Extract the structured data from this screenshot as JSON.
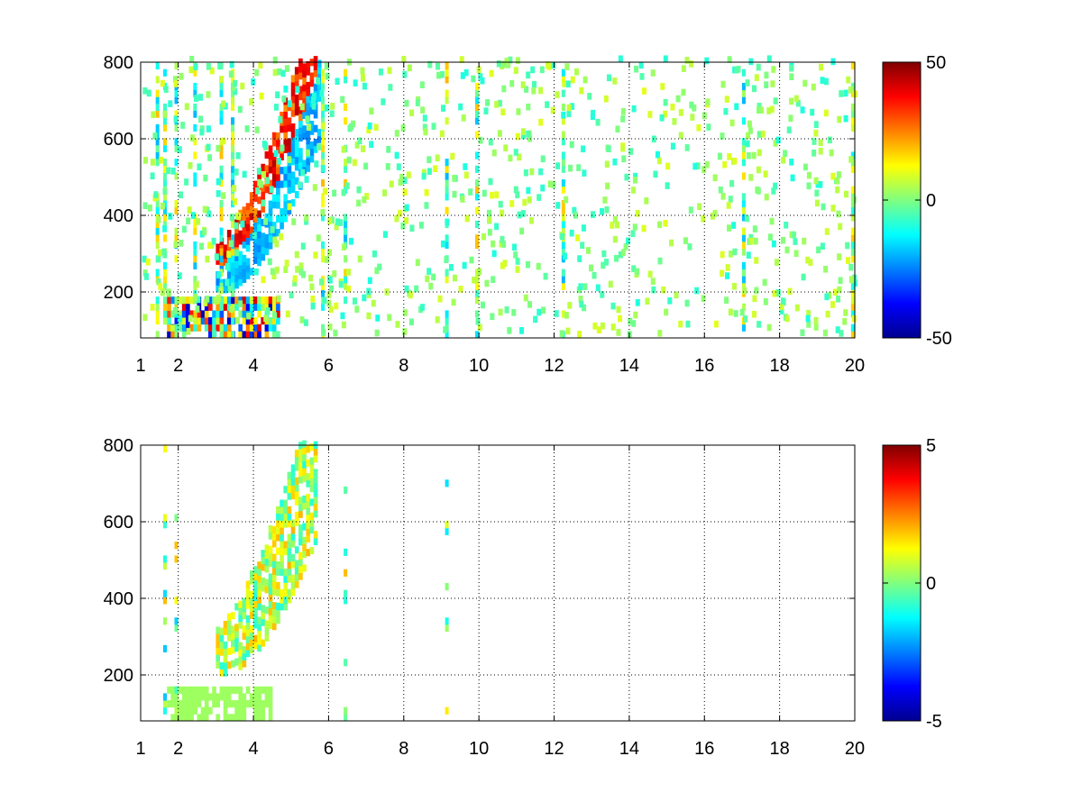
{
  "chart_data": [
    {
      "type": "heatmap",
      "title": "",
      "xlabel": "",
      "ylabel": "",
      "xlim": [
        1,
        20
      ],
      "ylim": [
        80,
        800
      ],
      "xticks": [
        1,
        2,
        4,
        6,
        8,
        10,
        12,
        14,
        16,
        18,
        20
      ],
      "yticks": [
        200,
        400,
        600,
        800
      ],
      "grid": true,
      "colormap": "jet",
      "colorbar": {
        "limits": [
          -50,
          50
        ],
        "ticks": [
          50,
          0,
          -50
        ]
      },
      "features": {
        "curved_ridge": {
          "x_range": [
            3.0,
            5.7
          ],
          "y_range": [
            260,
            790
          ],
          "positive_side_max": 45,
          "negative_side_min": -25
        },
        "low_band": {
          "x_range": [
            1.7,
            4.6
          ],
          "y_range": [
            80,
            170
          ],
          "value_range": [
            -45,
            45
          ]
        },
        "vertical_stripes_x": [
          1.4,
          1.6,
          1.9,
          2.4,
          3.1,
          3.4,
          5.8,
          6.4,
          9.1,
          9.9,
          12.2,
          17.0,
          19.9
        ]
      }
    },
    {
      "type": "heatmap",
      "title": "",
      "xlabel": "",
      "ylabel": "",
      "xlim": [
        1,
        20
      ],
      "ylim": [
        80,
        800
      ],
      "xticks": [
        1,
        2,
        4,
        6,
        8,
        10,
        12,
        14,
        16,
        18,
        20
      ],
      "yticks": [
        200,
        400,
        600,
        800
      ],
      "grid": true,
      "colormap": "jet",
      "colorbar": {
        "limits": [
          -5,
          5
        ],
        "ticks": [
          5,
          0,
          -5
        ]
      },
      "features": {
        "curved_ridge": {
          "x_range": [
            3.0,
            5.6
          ],
          "y_range": [
            260,
            740
          ],
          "value_range": [
            -1,
            2
          ]
        },
        "low_band": {
          "x_range": [
            1.7,
            4.4
          ],
          "y_range": [
            80,
            160
          ],
          "value": 0.3
        },
        "vertical_stripes_x": [
          1.6,
          1.9,
          6.4,
          9.1
        ]
      }
    }
  ]
}
